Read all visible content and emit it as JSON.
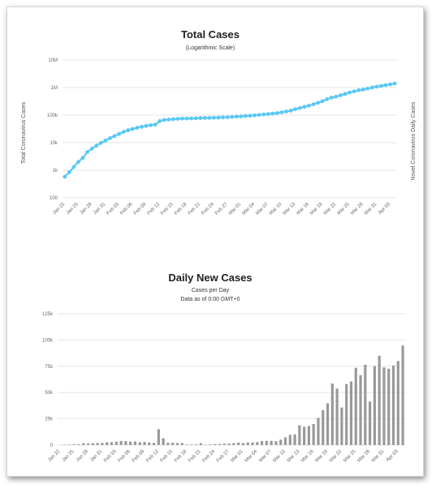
{
  "chart_data": [
    {
      "type": "line",
      "title": "Total Cases",
      "subtitle": "(Logarithmic Scale)",
      "ylabel": "Total Coronavirus Cases",
      "ylabel_right": "Novel Coronavirus Daily Cases",
      "yscale": "log",
      "ylim": [
        100,
        10000000
      ],
      "yticks": [
        "100",
        "1k",
        "10k",
        "100k",
        "1M",
        "10M"
      ],
      "ytick_values": [
        100,
        1000,
        10000,
        100000,
        1000000,
        10000000
      ],
      "xticks": [
        "Jan 22",
        "Jan 25",
        "Jan 28",
        "Jan 31",
        "Feb 03",
        "Feb 06",
        "Feb 09",
        "Feb 12",
        "Feb 15",
        "Feb 18",
        "Feb 21",
        "Feb 24",
        "Feb 27",
        "Mar 01",
        "Mar 04",
        "Mar 07",
        "Mar 10",
        "Mar 13",
        "Mar 16",
        "Mar 19",
        "Mar 22",
        "Mar 25",
        "Mar 28",
        "Mar 31",
        "Apr 03"
      ],
      "color": "#5bc8f5",
      "series": [
        {
          "x": [
            "Jan 22",
            "Jan 23",
            "Jan 24",
            "Jan 25",
            "Jan 26",
            "Jan 27",
            "Jan 28",
            "Jan 29",
            "Jan 30",
            "Jan 31",
            "Feb 01",
            "Feb 02",
            "Feb 03",
            "Feb 04",
            "Feb 05",
            "Feb 06",
            "Feb 07",
            "Feb 08",
            "Feb 09",
            "Feb 10",
            "Feb 11",
            "Feb 12",
            "Feb 13",
            "Feb 14",
            "Feb 15",
            "Feb 16",
            "Feb 17",
            "Feb 18",
            "Feb 19",
            "Feb 20",
            "Feb 21",
            "Feb 22",
            "Feb 23",
            "Feb 24",
            "Feb 25",
            "Feb 26",
            "Feb 27",
            "Feb 28",
            "Feb 29",
            "Mar 01",
            "Mar 02",
            "Mar 03",
            "Mar 04",
            "Mar 05",
            "Mar 06",
            "Mar 07",
            "Mar 08",
            "Mar 09",
            "Mar 10",
            "Mar 11",
            "Mar 12",
            "Mar 13",
            "Mar 14",
            "Mar 15",
            "Mar 16",
            "Mar 17",
            "Mar 18",
            "Mar 19",
            "Mar 20",
            "Mar 21",
            "Mar 22",
            "Mar 23",
            "Mar 24",
            "Mar 25",
            "Mar 26",
            "Mar 27",
            "Mar 28",
            "Mar 29",
            "Mar 30",
            "Mar 31",
            "Apr 01",
            "Apr 02",
            "Apr 03",
            "Apr 04"
          ],
          "values": [
            580,
            845,
            1320,
            2010,
            2800,
            4580,
            6060,
            7810,
            9820,
            11900,
            14550,
            17390,
            20630,
            24550,
            28280,
            31480,
            34880,
            37560,
            40550,
            43100,
            45170,
            60380,
            66890,
            69050,
            71230,
            73260,
            75140,
            75640,
            76200,
            76840,
            78600,
            78980,
            79540,
            80400,
            81400,
            82700,
            84100,
            86000,
            88400,
            90300,
            92800,
            95200,
            98000,
            101800,
            105800,
            109800,
            113500,
            118600,
            125900,
            135600,
            145800,
            164600,
            182000,
            200100,
            220100,
            246000,
            279200,
            318900,
            377400,
            431100,
            466800,
            524900,
            585400,
            658900,
            725300,
            801700,
            843200,
            918400,
            1003400,
            1077300,
            1149900,
            1225600,
            1305600,
            1400400
          ]
        }
      ]
    },
    {
      "type": "bar",
      "title": "Daily New Cases",
      "subtitle": "Cases per Day",
      "subtitle2": "Data as of 0:00 GMT+0",
      "ylim": [
        0,
        125000
      ],
      "yticks": [
        "0",
        "25k",
        "50k",
        "75k",
        "100k",
        "125k"
      ],
      "ytick_values": [
        0,
        25000,
        50000,
        75000,
        100000,
        125000
      ],
      "xticks": [
        "Jan 22",
        "Jan 25",
        "Jan 28",
        "Jan 31",
        "Feb 03",
        "Feb 06",
        "Feb 09",
        "Feb 12",
        "Feb 15",
        "Feb 18",
        "Feb 21",
        "Feb 24",
        "Feb 27",
        "Mar 01",
        "Mar 04",
        "Mar 07",
        "Mar 10",
        "Mar 13",
        "Mar 16",
        "Mar 19",
        "Mar 22",
        "Mar 25",
        "Mar 28",
        "Mar 31",
        "Apr 03"
      ],
      "color": "#999999",
      "categories": [
        "Jan 22",
        "Jan 23",
        "Jan 24",
        "Jan 25",
        "Jan 26",
        "Jan 27",
        "Jan 28",
        "Jan 29",
        "Jan 30",
        "Jan 31",
        "Feb 01",
        "Feb 02",
        "Feb 03",
        "Feb 04",
        "Feb 05",
        "Feb 06",
        "Feb 07",
        "Feb 08",
        "Feb 09",
        "Feb 10",
        "Feb 11",
        "Feb 12",
        "Feb 13",
        "Feb 14",
        "Feb 15",
        "Feb 16",
        "Feb 17",
        "Feb 18",
        "Feb 19",
        "Feb 20",
        "Feb 21",
        "Feb 22",
        "Feb 23",
        "Feb 24",
        "Feb 25",
        "Feb 26",
        "Feb 27",
        "Feb 28",
        "Feb 29",
        "Mar 01",
        "Mar 02",
        "Mar 03",
        "Mar 04",
        "Mar 05",
        "Mar 06",
        "Mar 07",
        "Mar 08",
        "Mar 09",
        "Mar 10",
        "Mar 11",
        "Mar 12",
        "Mar 13",
        "Mar 14",
        "Mar 15",
        "Mar 16",
        "Mar 17",
        "Mar 18",
        "Mar 19",
        "Mar 20",
        "Mar 21",
        "Mar 22",
        "Mar 23",
        "Mar 24",
        "Mar 25",
        "Mar 26",
        "Mar 27",
        "Mar 28",
        "Mar 29",
        "Mar 30",
        "Mar 31",
        "Apr 01",
        "Apr 02",
        "Apr 03",
        "Apr 04"
      ],
      "values": [
        0,
        300,
        480,
        690,
        790,
        1780,
        1480,
        1750,
        2010,
        2100,
        2600,
        2800,
        3200,
        3900,
        3700,
        3200,
        3400,
        2700,
        3000,
        2500,
        2100,
        15100,
        6500,
        2200,
        2200,
        2000,
        1900,
        500,
        550,
        640,
        1800,
        380,
        560,
        860,
        1000,
        1300,
        1400,
        1900,
        2400,
        1900,
        2500,
        2400,
        2800,
        3800,
        4000,
        4000,
        3700,
        5100,
        7300,
        9700,
        10200,
        18800,
        17400,
        18100,
        20000,
        25900,
        33200,
        39700,
        58500,
        53700,
        35700,
        58100,
        60500,
        73500,
        66400,
        76400,
        41500,
        75200,
        85000,
        73900,
        72600,
        75700,
        80000,
        94800
      ]
    }
  ]
}
